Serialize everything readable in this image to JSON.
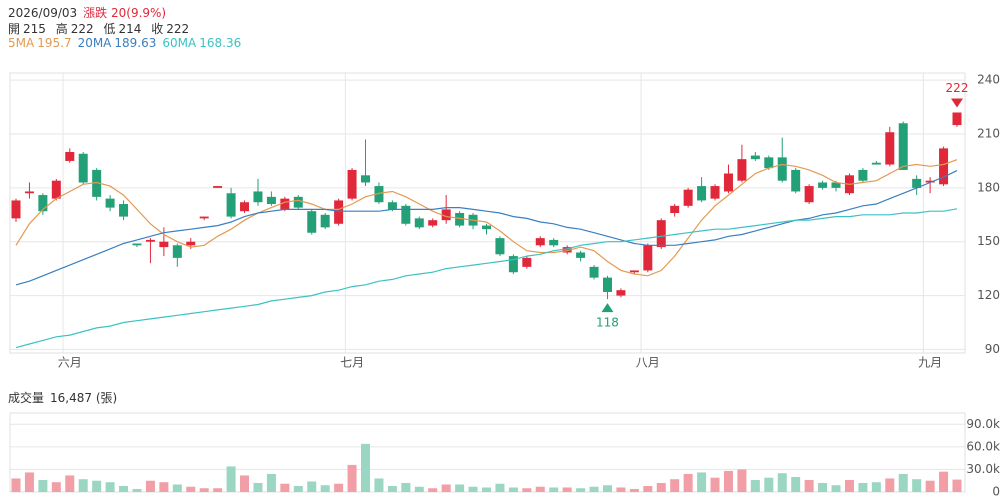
{
  "info": {
    "date": "2026/09/03",
    "change": "漲跌 20(9.9%)",
    "ohlc_labels": [
      "開",
      "高",
      "低",
      "收"
    ],
    "volume_title": "成交量",
    "volume_label": "16,487 (張)"
  },
  "chart_data": [
    {
      "type": "candlestick",
      "categories": [
        null,
        null,
        null,
        null,
        "六月",
        null,
        null,
        null,
        null,
        null,
        null,
        null,
        null,
        null,
        null,
        null,
        null,
        null,
        null,
        null,
        null,
        null,
        null,
        null,
        null,
        "七月",
        null,
        null,
        null,
        null,
        null,
        null,
        null,
        null,
        null,
        null,
        null,
        null,
        null,
        null,
        null,
        null,
        null,
        null,
        null,
        null,
        null,
        "八月",
        null,
        null,
        null,
        null,
        null,
        null,
        null,
        null,
        null,
        null,
        null,
        null,
        null,
        null,
        null,
        null,
        null,
        null,
        null,
        null,
        "九月",
        null,
        null
      ],
      "open": [
        163,
        177,
        176,
        174,
        195,
        199,
        190,
        174,
        171,
        149,
        150,
        147,
        148,
        148,
        163,
        180,
        177,
        167,
        178,
        175,
        168,
        175,
        167,
        165,
        160,
        174,
        187,
        181,
        172,
        170,
        163,
        159,
        162,
        166,
        165,
        159,
        152,
        142,
        136,
        148,
        151,
        144,
        144,
        136,
        130,
        120,
        133,
        134,
        147,
        166,
        170,
        181,
        174,
        178,
        184,
        198,
        197,
        197,
        190,
        172,
        183,
        183,
        177,
        190,
        194,
        193,
        216,
        185,
        183,
        182,
        215
      ],
      "high": [
        174,
        183,
        177,
        185,
        202,
        200,
        191,
        176,
        173,
        149,
        152,
        158,
        149,
        152,
        164,
        181,
        180,
        173,
        185,
        178,
        175,
        176,
        168,
        166,
        174,
        191,
        207,
        183,
        173,
        171,
        164,
        163,
        176,
        167,
        166,
        160,
        153,
        143,
        142,
        153,
        152,
        148,
        145,
        137,
        131,
        124,
        134,
        149,
        163,
        171,
        180,
        186,
        182,
        193,
        204,
        200,
        198,
        208,
        191,
        182,
        184,
        184,
        188,
        191,
        195,
        214,
        217,
        187,
        186,
        203,
        222
      ],
      "low": [
        161,
        174,
        165,
        173,
        194,
        182,
        173,
        167,
        162,
        147,
        138,
        142,
        136,
        146,
        162,
        180,
        163,
        166,
        170,
        170,
        167,
        168,
        154,
        157,
        159,
        173,
        181,
        171,
        167,
        159,
        157,
        158,
        160,
        158,
        157,
        154,
        142,
        132,
        135,
        147,
        147,
        143,
        139,
        129,
        118,
        119,
        132,
        133,
        146,
        164,
        169,
        172,
        173,
        177,
        183,
        195,
        190,
        183,
        177,
        171,
        179,
        178,
        176,
        183,
        193,
        192,
        190,
        176,
        177,
        181,
        214
      ],
      "close": [
        173,
        178,
        167,
        184,
        200,
        183,
        175,
        169,
        164,
        148,
        151,
        150,
        141,
        150,
        164,
        181,
        164,
        172,
        172,
        171,
        174,
        169,
        155,
        158,
        173,
        190,
        183,
        172,
        168,
        160,
        158,
        162,
        168,
        159,
        159,
        157,
        143,
        133,
        141,
        152,
        148,
        147,
        141,
        130,
        122,
        123,
        134,
        148,
        162,
        170,
        179,
        173,
        181,
        188,
        196,
        196,
        191,
        184,
        178,
        181,
        180,
        180,
        187,
        184,
        193,
        211,
        190,
        180,
        184,
        202,
        222
      ],
      "up_color": "#e0283a",
      "down_color": "#23a077",
      "series": [
        {
          "name": "5MA",
          "color": "#e39a52",
          "values": [
            148,
            160,
            168,
            174,
            178,
            182,
            183,
            181,
            176,
            168,
            160,
            154,
            150,
            147,
            148,
            153,
            157,
            162,
            166,
            169,
            172,
            173,
            171,
            168,
            168,
            171,
            175,
            177,
            178,
            175,
            171,
            167,
            164,
            163,
            162,
            161,
            156,
            150,
            145,
            144,
            144,
            145,
            147,
            145,
            139,
            134,
            132,
            131,
            134,
            142,
            152,
            162,
            170,
            176,
            182,
            188,
            191,
            193,
            192,
            190,
            187,
            183,
            182,
            183,
            184,
            188,
            192,
            193,
            192,
            193,
            195.7
          ]
        },
        {
          "name": "20MA",
          "color": "#3a7fc0",
          "values": [
            126,
            128,
            131,
            134,
            137,
            140,
            143,
            146,
            149,
            151,
            153,
            155,
            156,
            157,
            158,
            159,
            161,
            164,
            166,
            167,
            168,
            168,
            168,
            168,
            167,
            167,
            167,
            167,
            168,
            168,
            168,
            168,
            169,
            169,
            168,
            167,
            166,
            164,
            163,
            161,
            160,
            158,
            157,
            155,
            153,
            151,
            149,
            148,
            148,
            148,
            149,
            150,
            151,
            153,
            154,
            156,
            158,
            160,
            162,
            163,
            165,
            166,
            168,
            170,
            171,
            174,
            177,
            180,
            183,
            186,
            189.63
          ]
        },
        {
          "name": "60MA",
          "color": "#3cc2c4",
          "values": [
            91,
            93,
            95,
            97,
            98,
            100,
            102,
            103,
            105,
            106,
            107,
            108,
            109,
            110,
            111,
            112,
            113,
            114,
            115,
            117,
            118,
            119,
            120,
            122,
            123,
            125,
            126,
            128,
            129,
            131,
            132,
            133,
            135,
            136,
            137,
            138,
            139,
            140,
            142,
            143,
            145,
            146,
            148,
            149,
            150,
            150,
            151,
            152,
            153,
            154,
            155,
            156,
            157,
            157,
            158,
            159,
            160,
            161,
            162,
            162,
            163,
            164,
            164,
            165,
            165,
            165,
            166,
            166,
            167,
            167,
            168.36
          ]
        }
      ],
      "ylim": [
        88,
        244
      ],
      "yticks": [
        90,
        120,
        150,
        180,
        210,
        240
      ],
      "grid": true
    },
    {
      "type": "bar",
      "values": [
        18,
        26,
        16,
        13,
        22,
        17,
        15,
        13,
        8,
        4,
        15,
        13,
        10,
        7,
        5,
        5,
        34,
        22,
        12,
        24,
        11,
        8,
        14,
        9,
        11,
        36,
        64,
        18,
        8,
        12,
        7,
        5,
        10,
        10,
        7,
        6,
        11,
        6,
        5,
        7,
        6,
        6,
        5,
        7,
        9,
        6,
        4,
        8,
        12,
        17,
        24,
        26,
        19,
        28,
        30,
        16,
        19,
        25,
        20,
        16,
        12,
        9,
        16,
        12,
        13,
        18,
        24,
        17,
        15,
        27,
        16.487
      ],
      "up_color": "#f19ea6",
      "down_color": "#9bd6c2",
      "ylim": [
        0,
        105
      ],
      "yticks": [
        0,
        {
          "value": 30,
          "label": "30.0k"
        },
        {
          "value": 60,
          "label": "60.0k"
        },
        {
          "value": 90,
          "label": "90.0k"
        }
      ],
      "grid": true
    }
  ]
}
